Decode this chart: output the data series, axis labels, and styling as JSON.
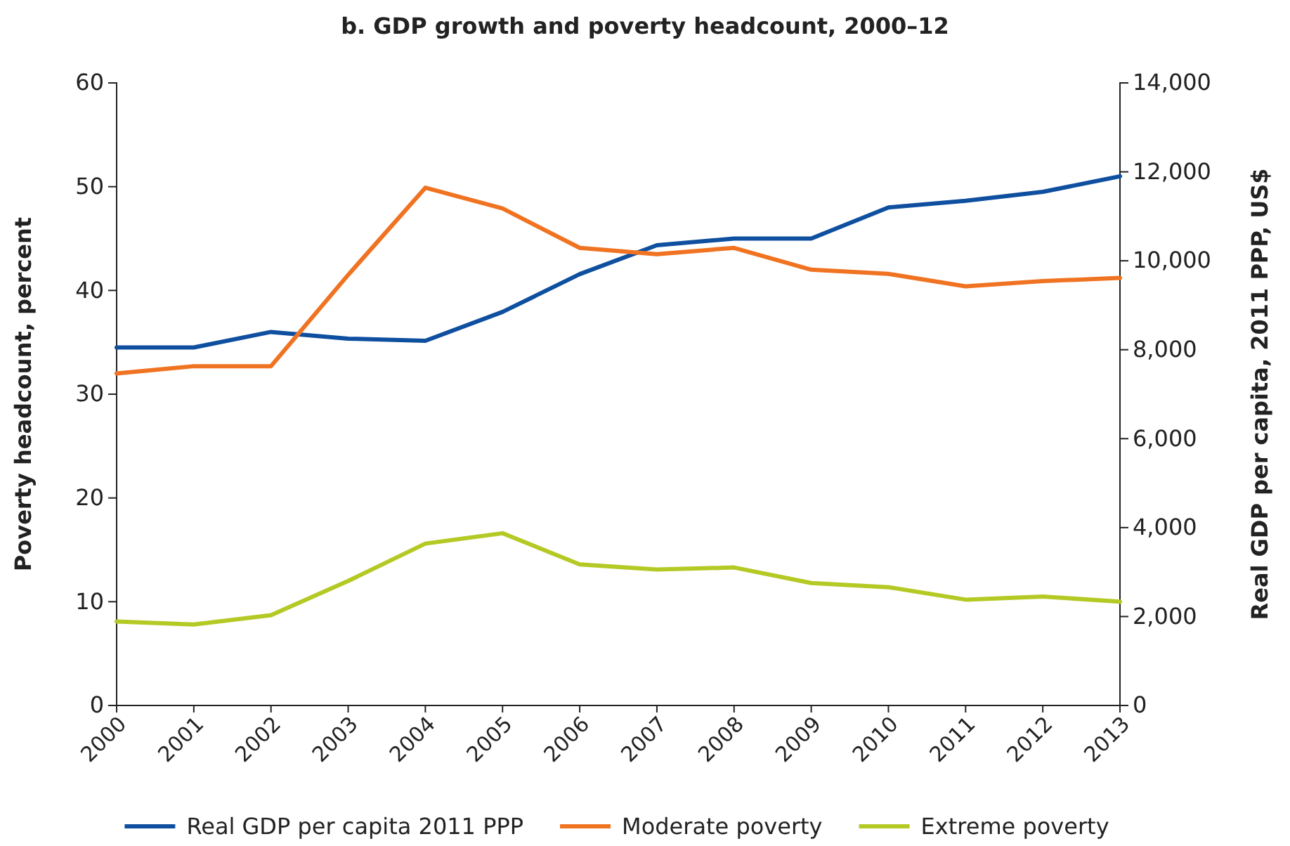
{
  "chart_data": {
    "type": "line",
    "title": "b. GDP growth and poverty headcount, 2000–12",
    "ylabel": "Poverty headcount, percent",
    "y2label": "Real GDP per capita, 2011 PPP, US$",
    "x": [
      2000,
      2001,
      2002,
      2003,
      2004,
      2005,
      2006,
      2007,
      2008,
      2009,
      2010,
      2011,
      2012,
      2013
    ],
    "xlim": [
      2000,
      2013
    ],
    "xticks": [
      2000,
      2001,
      2002,
      2003,
      2004,
      2005,
      2006,
      2007,
      2008,
      2009,
      2010,
      2011,
      2012,
      2013
    ],
    "ylim": [
      0,
      60
    ],
    "yticks": [
      0,
      10,
      20,
      30,
      40,
      50,
      60
    ],
    "y2lim": [
      0,
      14000
    ],
    "y2ticks": [
      {
        "value": 0,
        "label": "0"
      },
      {
        "value": 2000,
        "label": "2,000"
      },
      {
        "value": 4000,
        "label": "4,000"
      },
      {
        "value": 6000,
        "label": "6,000"
      },
      {
        "value": 8000,
        "label": "8,000"
      },
      {
        "value": 10000,
        "label": "10,000"
      },
      {
        "value": 12000,
        "label": "12,000"
      },
      {
        "value": 14000,
        "label": "14,000"
      }
    ],
    "grid": false,
    "legend": "bottom",
    "marker": "none",
    "line_style": "solid",
    "series": [
      {
        "name": "Real GDP per capita 2011 PPP",
        "color": "#0f4fa0",
        "axis": "y2",
        "values": [
          8050,
          8050,
          8400,
          8250,
          8200,
          8850,
          9700,
          10350,
          10500,
          10500,
          11200,
          11350,
          11550,
          11900
        ]
      },
      {
        "name": "Moderate poverty",
        "color": "#f07322",
        "values": [
          32.0,
          32.7,
          32.7,
          41.5,
          49.9,
          47.9,
          44.1,
          43.5,
          44.1,
          42.0,
          41.6,
          40.4,
          40.9,
          41.2
        ]
      },
      {
        "name": "Extreme poverty",
        "color": "#b5c925",
        "values": [
          8.1,
          7.8,
          8.7,
          12.0,
          15.6,
          16.6,
          13.6,
          13.1,
          13.3,
          11.8,
          11.4,
          10.2,
          10.5,
          10.0
        ]
      }
    ]
  }
}
